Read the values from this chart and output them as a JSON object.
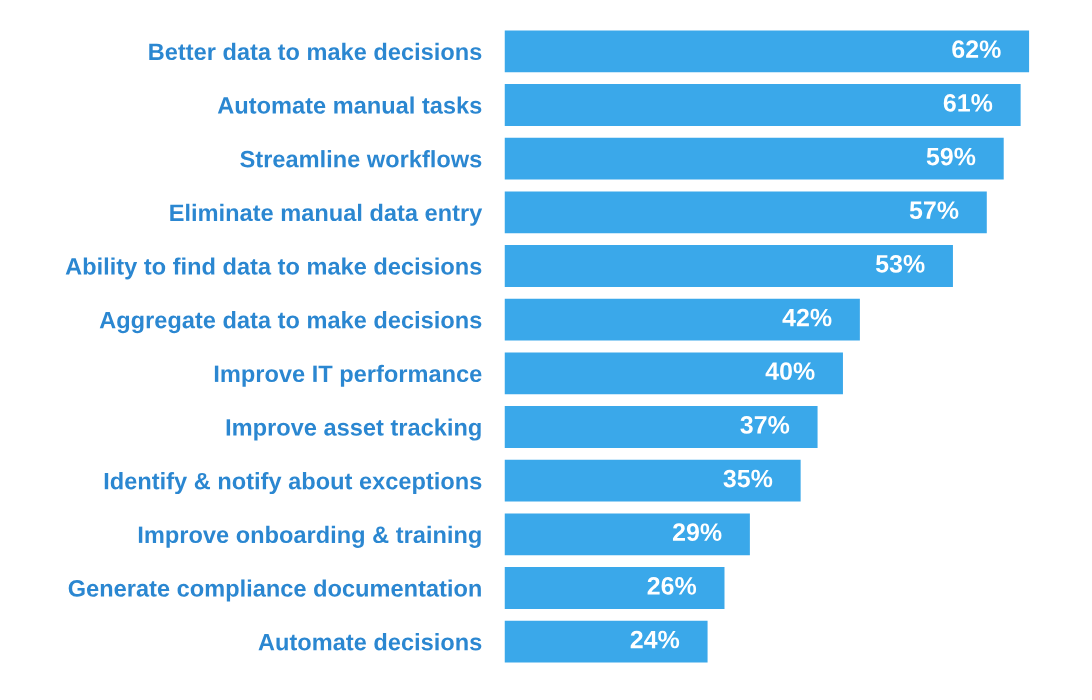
{
  "chart_data": {
    "type": "bar",
    "orientation": "horizontal",
    "categories": [
      "Better data to make decisions",
      "Automate manual tasks",
      "Streamline workflows",
      "Eliminate manual data entry",
      "Ability to find data to make decisions",
      "Aggregate data to make decisions",
      "Improve IT performance",
      "Improve asset tracking",
      "Identify & notify about exceptions",
      "Improve onboarding & training",
      "Generate compliance documentation",
      "Automate decisions"
    ],
    "values": [
      62,
      61,
      59,
      57,
      53,
      42,
      40,
      37,
      35,
      29,
      26,
      24
    ],
    "value_labels": [
      "62%",
      "61%",
      "59%",
      "57%",
      "53%",
      "42%",
      "40%",
      "37%",
      "35%",
      "29%",
      "26%",
      "24%"
    ],
    "color": "#3aa8ea"
  }
}
